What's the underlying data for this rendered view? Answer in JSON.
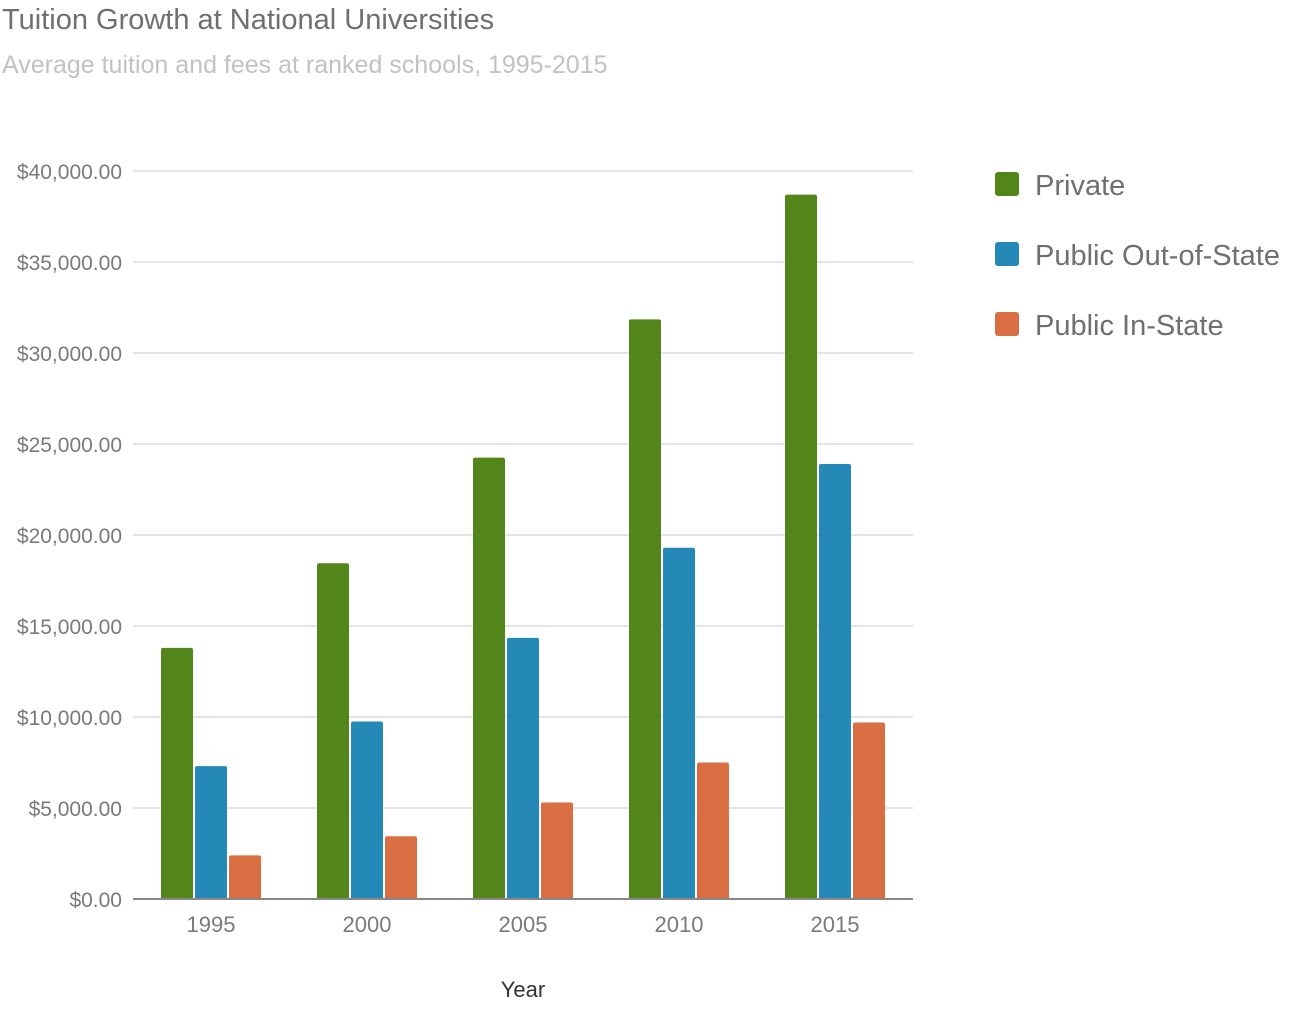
{
  "chart_data": {
    "type": "bar",
    "title": "Tuition Growth at National Universities",
    "subtitle": "Average tuition and fees at ranked schools, 1995-2015",
    "xlabel": "Year",
    "ylabel": "",
    "categories": [
      "1995",
      "2000",
      "2005",
      "2010",
      "2015"
    ],
    "series": [
      {
        "name": "Private",
        "color": "#53861a",
        "values": [
          13800,
          18450,
          24250,
          31850,
          38700
        ]
      },
      {
        "name": "Public Out-of-State",
        "color": "#2489b7",
        "values": [
          7300,
          9750,
          14350,
          19300,
          23900
        ]
      },
      {
        "name": "Public In-State",
        "color": "#d96e42",
        "values": [
          2400,
          3450,
          5300,
          7500,
          9700
        ]
      }
    ],
    "ylim": [
      0,
      40000
    ],
    "yticks": [
      0,
      5000,
      10000,
      15000,
      20000,
      25000,
      30000,
      35000,
      40000
    ],
    "ytick_labels": [
      "$0.00",
      "$5,000.00",
      "$10,000.00",
      "$15,000.00",
      "$20,000.00",
      "$25,000.00",
      "$30,000.00",
      "$35,000.00",
      "$40,000.00"
    ],
    "grid": true,
    "legend_position": "right"
  }
}
